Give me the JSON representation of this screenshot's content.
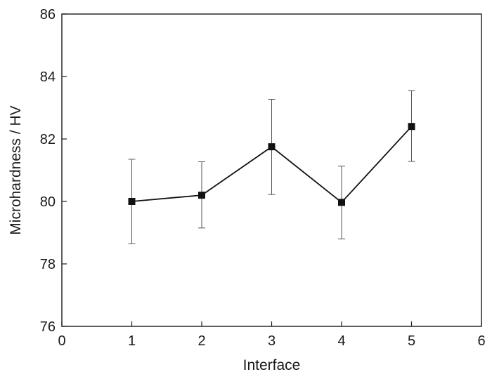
{
  "chart_data": {
    "type": "line",
    "xlabel": "Interface",
    "ylabel": "Microhardness / HV",
    "xlim": [
      0,
      6
    ],
    "ylim": [
      76,
      86
    ],
    "xticks": [
      0,
      1,
      2,
      3,
      4,
      5,
      6
    ],
    "yticks": [
      76,
      78,
      80,
      82,
      84,
      86
    ],
    "grid": false,
    "legend": "none",
    "series": [
      {
        "x": [
          1,
          2,
          3,
          4,
          5
        ],
        "y": [
          80.0,
          80.2,
          81.75,
          79.97,
          82.4
        ],
        "yerr_low": [
          78.65,
          79.15,
          80.22,
          78.8,
          81.28
        ],
        "yerr_high": [
          81.35,
          81.27,
          83.27,
          81.13,
          83.55
        ],
        "marker": "square",
        "color": "#111111"
      }
    ]
  }
}
